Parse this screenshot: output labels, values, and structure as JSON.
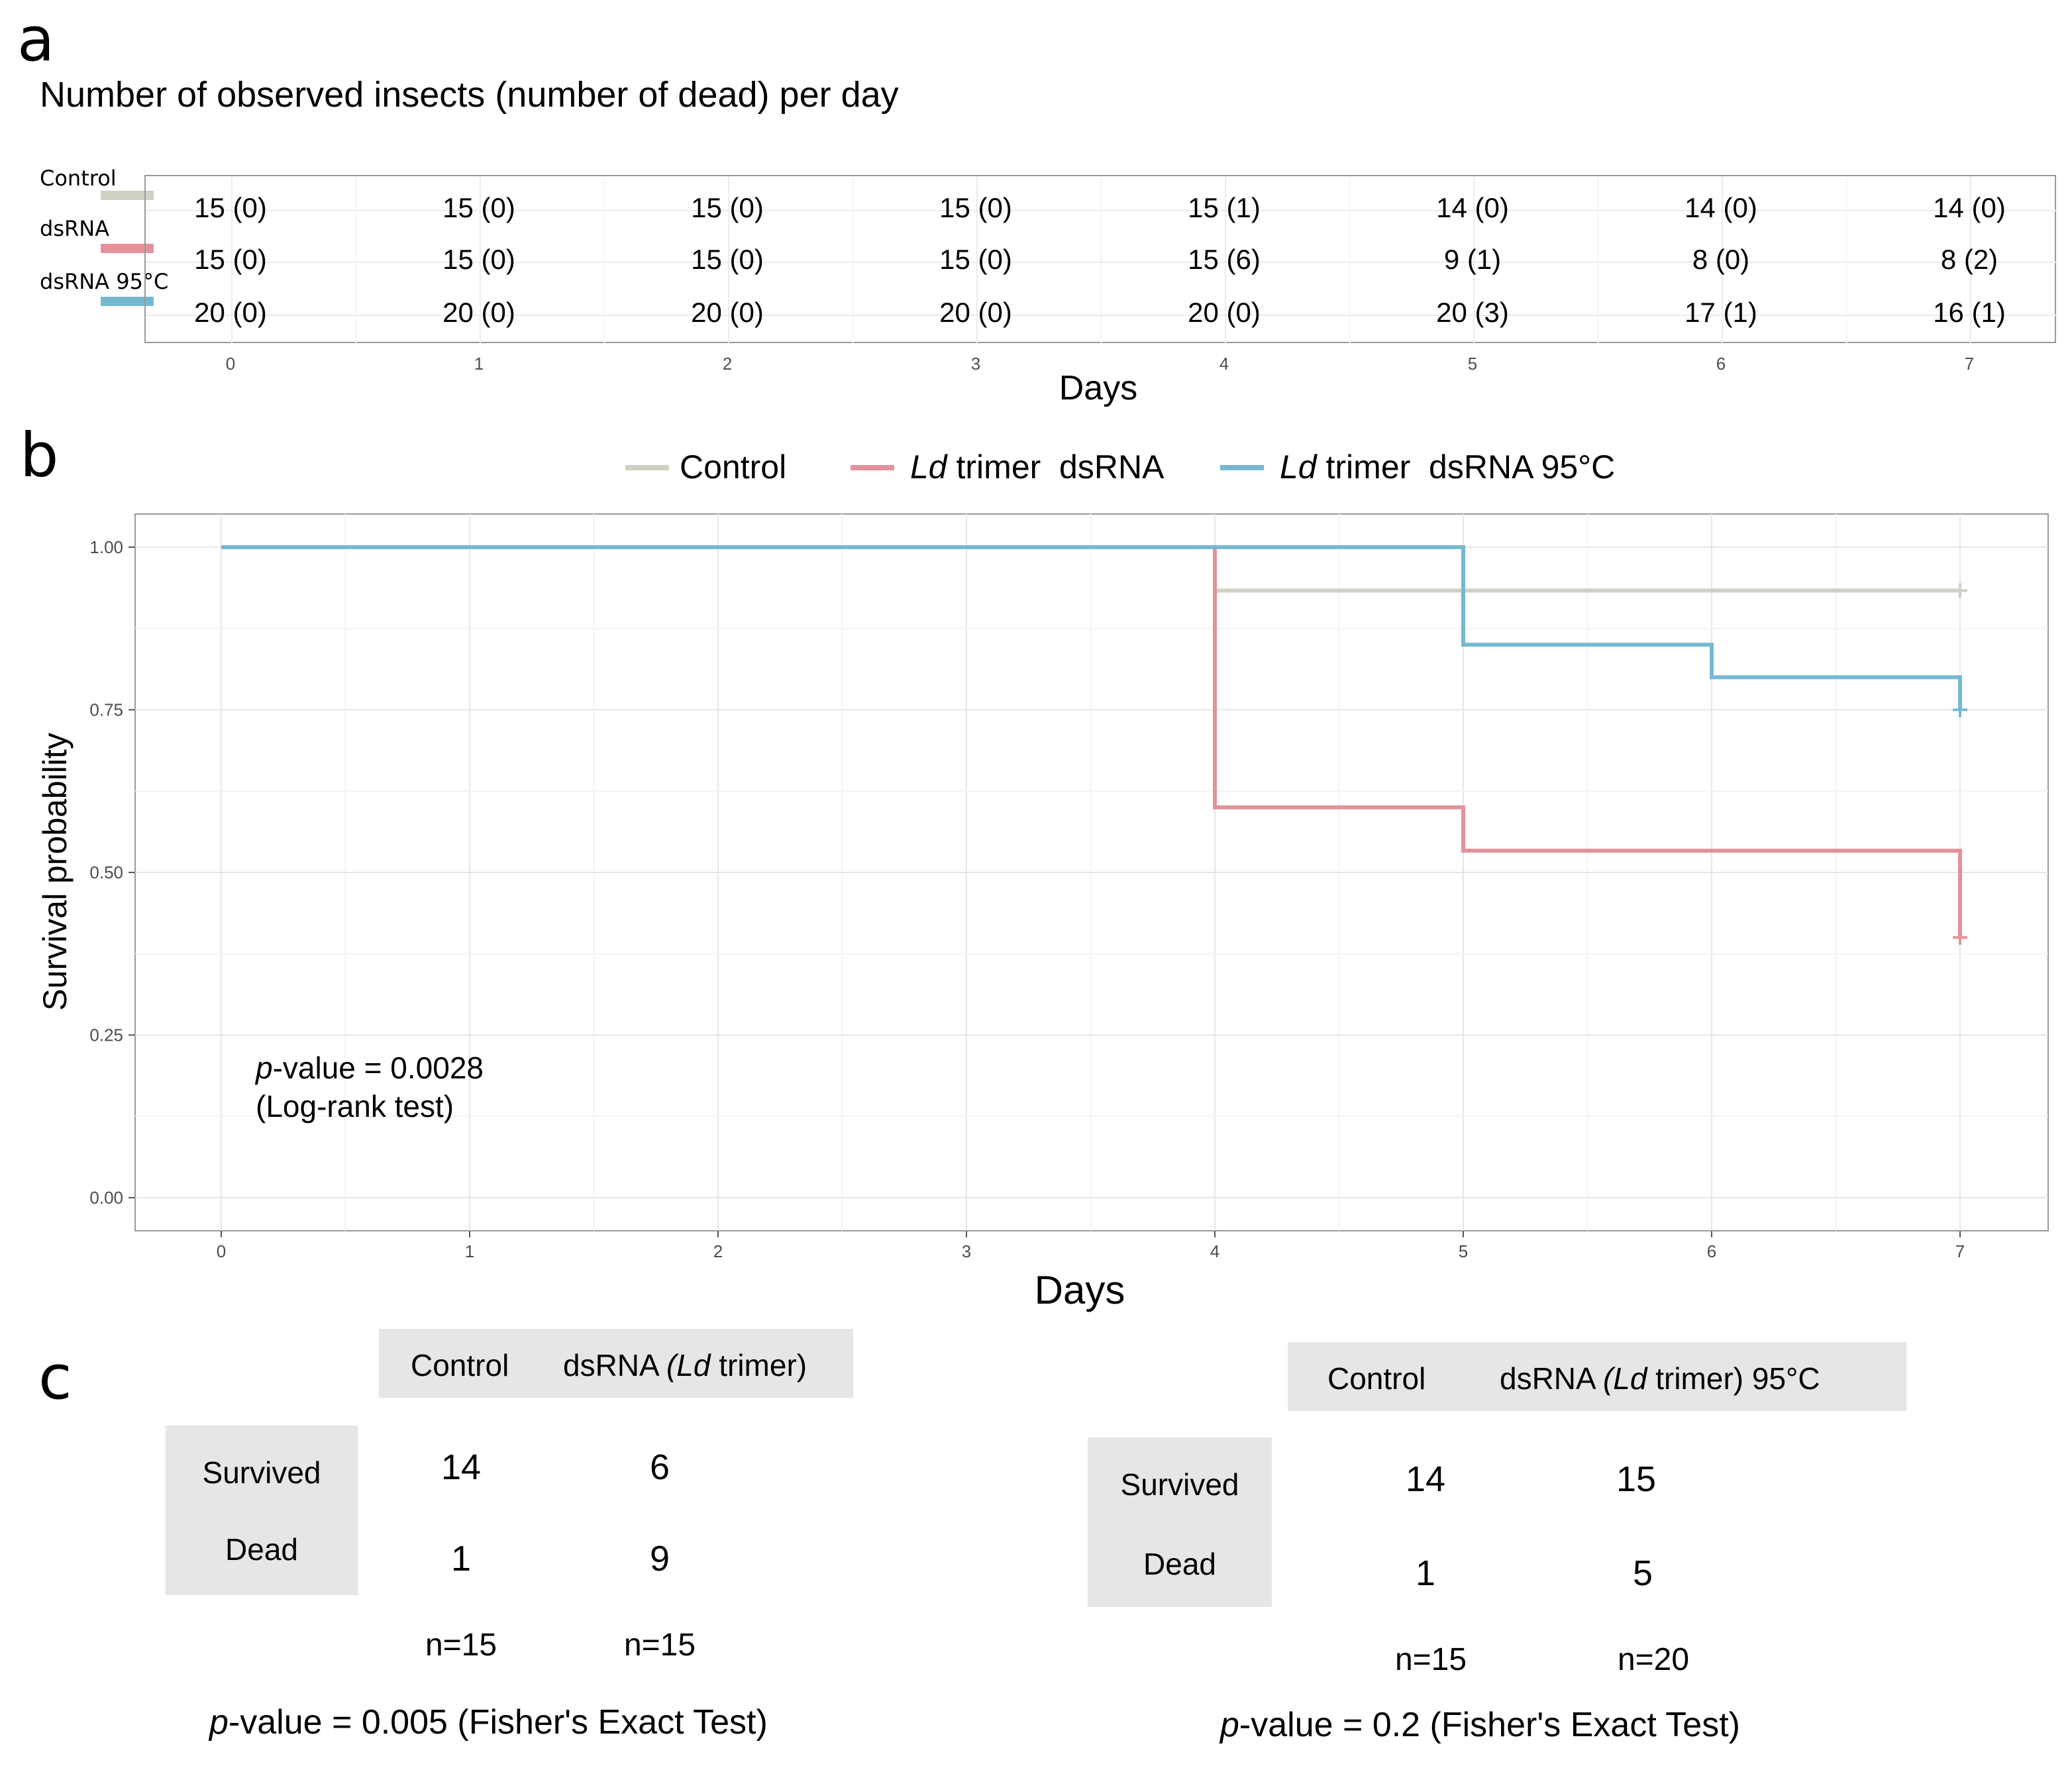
{
  "panel_labels": {
    "a": "a",
    "b": "b",
    "c": "c"
  },
  "colors": {
    "control": "#cfcfc3",
    "dsrna": "#e4919b",
    "dsrna95": "#77b8d1"
  },
  "panel_a": {
    "title": "Number of observed insects (number of dead) per day",
    "groups": [
      {
        "label": "Control",
        "color": "#cfcfc3",
        "cells": [
          "15 (0)",
          "15 (0)",
          "15 (0)",
          "15 (0)",
          "15 (1)",
          "14 (0)",
          "14 (0)",
          "14 (0)"
        ]
      },
      {
        "label": "dsRNA",
        "color": "#e4919b",
        "cells": [
          "15 (0)",
          "15 (0)",
          "15 (0)",
          "15 (0)",
          "15 (6)",
          "9 (1)",
          "8 (0)",
          "8 (2)"
        ]
      },
      {
        "label": "dsRNA 95°C",
        "color": "#77b8d1",
        "cells": [
          "20 (0)",
          "20 (0)",
          "20 (0)",
          "20 (0)",
          "20 (0)",
          "20 (3)",
          "17 (1)",
          "16 (1)"
        ]
      }
    ],
    "x_ticks": [
      "0",
      "1",
      "2",
      "3",
      "4",
      "5",
      "6",
      "7"
    ],
    "xlabel": "Days"
  },
  "chart_data": {
    "type": "line",
    "subtype": "step (Kaplan-Meier survival)",
    "xlabel": "Days",
    "ylabel": "Survival probability",
    "xlim": [
      0,
      7
    ],
    "ylim": [
      0,
      1
    ],
    "x_ticks": [
      0,
      1,
      2,
      3,
      4,
      5,
      6,
      7
    ],
    "y_ticks": [
      0.0,
      0.25,
      0.5,
      0.75,
      1.0
    ],
    "y_tick_labels": [
      "0.00",
      "0.25",
      "0.50",
      "0.75",
      "1.00"
    ],
    "grid": true,
    "legend_position": "top",
    "series": [
      {
        "name": "Control",
        "legend_italic": "",
        "legend_rest": "Control",
        "color": "#cfcfc3",
        "x": [
          0,
          4,
          7
        ],
        "y": [
          1.0,
          0.9333,
          0.9333
        ],
        "censor": [
          [
            7,
            0.9333
          ]
        ]
      },
      {
        "name": "Ld trimer dsRNA",
        "legend_italic": "Ld",
        "legend_rest": " trimer  dsRNA",
        "color": "#e4919b",
        "x": [
          0,
          4,
          5,
          7
        ],
        "y": [
          1.0,
          0.6,
          0.5333,
          0.4
        ],
        "censor": [
          [
            7,
            0.4
          ]
        ]
      },
      {
        "name": "Ld trimer dsRNA 95°C",
        "legend_italic": "Ld",
        "legend_rest": " trimer  dsRNA 95°C",
        "color": "#77b8d1",
        "x": [
          0,
          5,
          6,
          7
        ],
        "y": [
          1.0,
          0.85,
          0.8,
          0.75
        ],
        "censor": [
          [
            7,
            0.75
          ]
        ]
      }
    ],
    "annotation": {
      "italic": "p",
      "line1_rest": "-value = 0.0028",
      "line2": "(Log-rank test)"
    }
  },
  "panel_c": {
    "left": {
      "col_headers": [
        "Control",
        "dsRNA "
      ],
      "col2_italic": "(Ld",
      "col2_rest": " trimer)",
      "row_headers": [
        "Survived",
        "Dead"
      ],
      "values": [
        [
          "14",
          "6"
        ],
        [
          "1",
          "9"
        ]
      ],
      "n": [
        "n=15",
        "n=15"
      ],
      "p_italic": "p",
      "p_rest": "-value = 0.005 (Fisher's Exact Test)"
    },
    "right": {
      "col_headers": [
        "Control",
        "dsRNA "
      ],
      "col2_italic": "(Ld",
      "col2_rest": " trimer) 95°C",
      "row_headers": [
        "Survived",
        "Dead"
      ],
      "values": [
        [
          "14",
          "15"
        ],
        [
          "1",
          "5"
        ]
      ],
      "n": [
        "n=15",
        "n=20"
      ],
      "p_italic": "p",
      "p_rest": "-value = 0.2 (Fisher's Exact Test)"
    }
  }
}
